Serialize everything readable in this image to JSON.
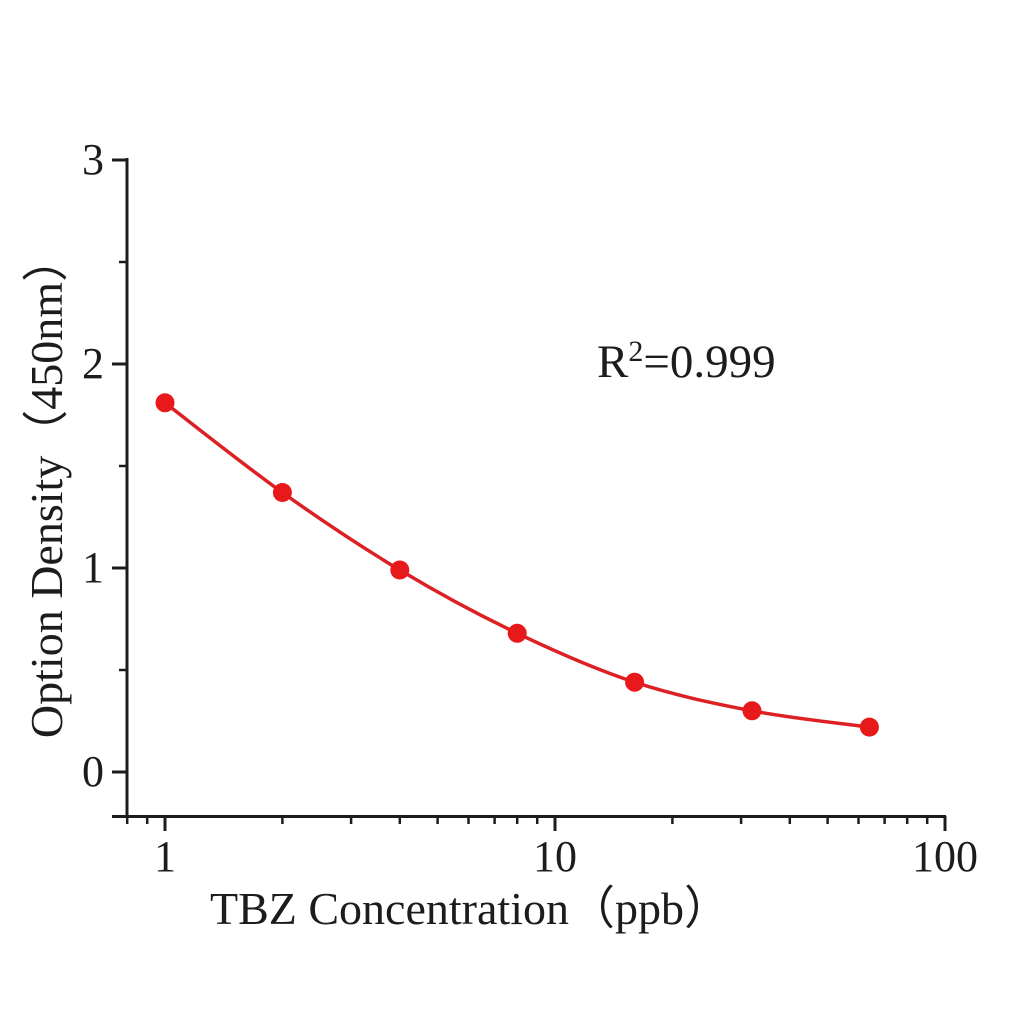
{
  "chart_data": {
    "type": "scatter",
    "title": "",
    "xlabel": "TBZ Concentration（ppb）",
    "ylabel": "Option Density（450nm）",
    "annotation": "R²=0.999",
    "annotation_parts": {
      "base": "R",
      "superscript": "2",
      "suffix": "=0.999"
    },
    "x_scale": "log",
    "y_scale": "linear",
    "xlim": [
      0.72,
      101
    ],
    "ylim": [
      -0.22,
      3
    ],
    "x": [
      1,
      2,
      4,
      8,
      16,
      32,
      64
    ],
    "y": [
      1.81,
      1.37,
      0.99,
      0.68,
      0.44,
      0.3,
      0.22
    ],
    "x_major_ticks": [
      1,
      10,
      100
    ],
    "x_tick_labels": [
      "1",
      "10",
      "100"
    ],
    "x_minor_ticks": [
      0.8,
      0.9,
      2,
      3,
      4,
      5,
      6,
      7,
      8,
      9,
      20,
      30,
      40,
      50,
      60,
      70,
      80,
      90
    ],
    "y_major_ticks": [
      0,
      1,
      2,
      3
    ],
    "y_tick_labels": [
      "0",
      "1",
      "2",
      "3"
    ],
    "y_minor_ticks": [
      0.5,
      1.5,
      2.5
    ],
    "grid": false,
    "legend": null,
    "marker": "circle",
    "colors": {
      "curve": "#dd2023",
      "marker": "#e8191b",
      "axis": "#1c1c1c",
      "background": "#ffffff"
    }
  }
}
